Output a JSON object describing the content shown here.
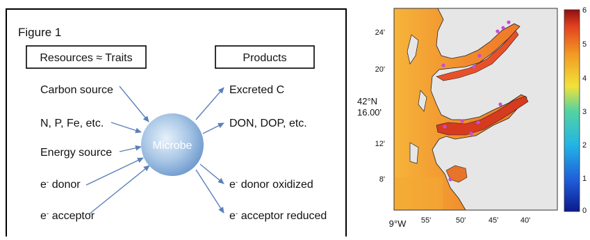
{
  "figure": {
    "label": "Figure 1",
    "resources_header": "Resources ≈ Traits",
    "products_header": "Products",
    "center_label": "Microbe",
    "resources": [
      {
        "prefix": "",
        "sup": "",
        "text": "Carbon source"
      },
      {
        "prefix": "",
        "sup": "",
        "text": "N, P, Fe, etc."
      },
      {
        "prefix": "",
        "sup": "",
        "text": "Energy source"
      },
      {
        "prefix": "e",
        "sup": "-",
        "text": " donor"
      },
      {
        "prefix": "e",
        "sup": "-",
        "text": " acceptor"
      }
    ],
    "products": [
      {
        "prefix": "",
        "sup": "",
        "text": "Excreted C"
      },
      {
        "prefix": "",
        "sup": "",
        "text": "DON, DOP, etc."
      },
      {
        "prefix": "e",
        "sup": "-",
        "text": " donor oxidized"
      },
      {
        "prefix": "e",
        "sup": "-",
        "text": " acceptor reduced"
      }
    ]
  },
  "map": {
    "lat_labels": [
      "24'",
      "20'",
      "16.00'",
      "12'",
      "8'"
    ],
    "lat_center": "42°N",
    "lon_labels": [
      "9°W",
      "55'",
      "50'",
      "45'",
      "40'"
    ],
    "colorbar_ticks": [
      "6",
      "5",
      "4",
      "3",
      "2",
      "1",
      "0"
    ],
    "colors": {
      "low": "#1a2f9e",
      "high": "#c8231e",
      "land": "#e6e6e6",
      "marker": "#c84bd8"
    }
  }
}
